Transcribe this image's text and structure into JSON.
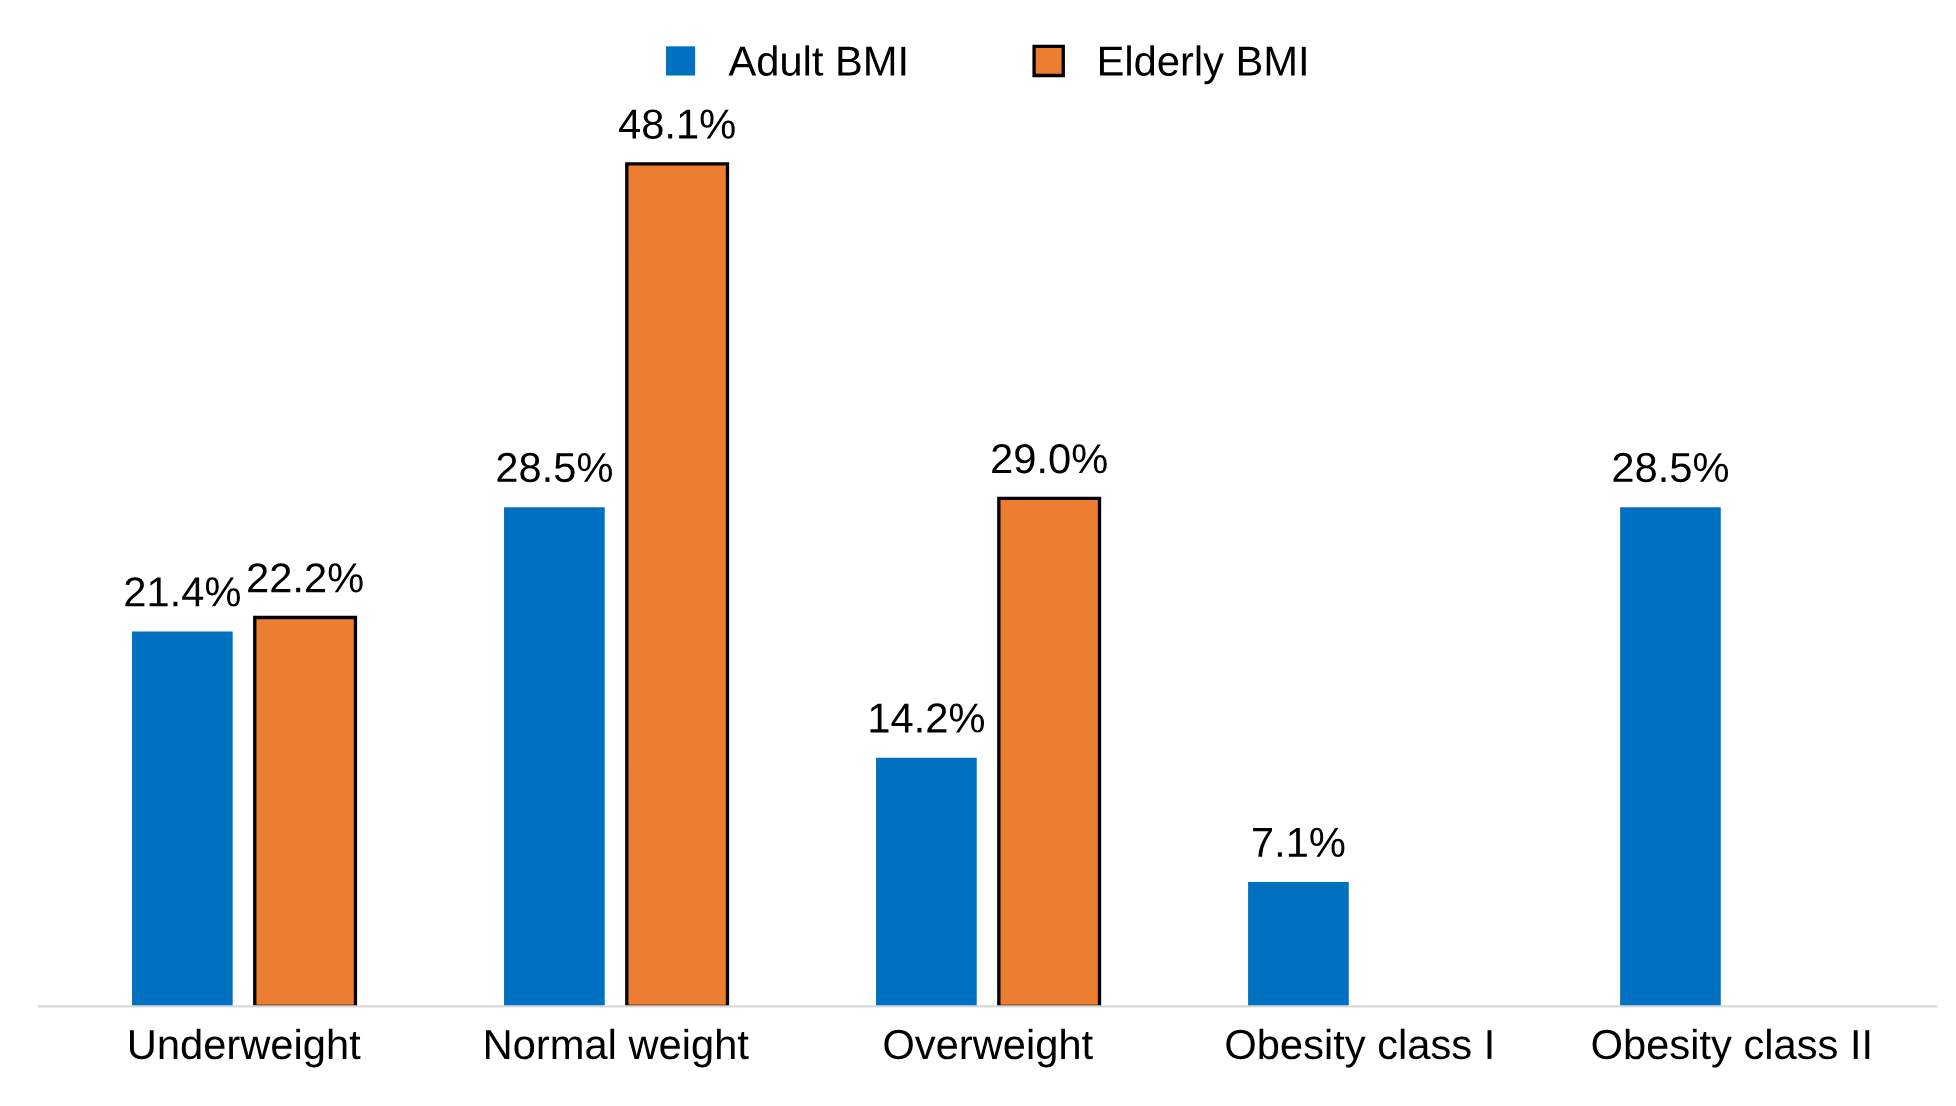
{
  "chart_data": {
    "type": "bar",
    "categories": [
      "Underweight",
      "Normal weight",
      "Overweight",
      "Obesity class I",
      "Obesity class II"
    ],
    "series": [
      {
        "name": "Adult BMI",
        "color": "#0070c0",
        "values": [
          21.4,
          28.5,
          14.2,
          7.1,
          28.5
        ],
        "value_labels": [
          "21.4%",
          "28.5%",
          "14.2%",
          "7.1%",
          "28.5%"
        ]
      },
      {
        "name": "Elderly BMI",
        "color": "#ed7d31",
        "values": [
          22.2,
          48.1,
          29.0,
          null,
          null
        ],
        "value_labels": [
          "22.2%",
          "48.1%",
          "29.0%",
          null,
          null
        ]
      }
    ],
    "legend": "top",
    "grid": false
  }
}
